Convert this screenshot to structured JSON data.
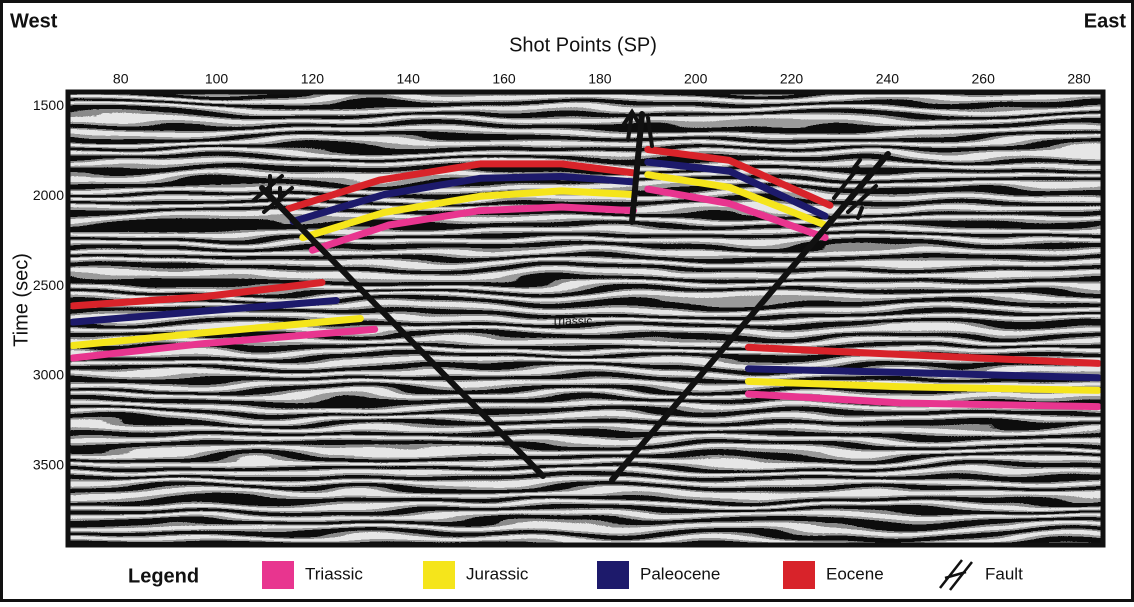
{
  "chart_data": {
    "type": "line",
    "left_label": "West",
    "right_label": "East",
    "xlabel": "Shot Points (SP)",
    "ylabel": "Time (sec)",
    "annotation": "Triassic",
    "legend_title": "Legend",
    "fault_label": "Fault",
    "xlim": [
      69,
      285
    ],
    "xticks": [
      80,
      100,
      120,
      140,
      160,
      180,
      200,
      220,
      240,
      260,
      280
    ],
    "ylim": [
      1420,
      3940
    ],
    "y_inverted": true,
    "yticks": [
      1500,
      2000,
      2500,
      3000,
      3500
    ],
    "series": [
      {
        "name": "Triassic",
        "color": "#e8358f",
        "x": [
          70,
          97,
          133,
          null,
          120,
          136,
          155,
          172,
          187,
          null,
          190,
          207,
          227,
          null,
          211,
          243,
          284
        ],
        "values": [
          2900,
          2820,
          2740,
          null,
          2300,
          2160,
          2080,
          2060,
          2080,
          null,
          1960,
          2040,
          2230,
          null,
          3100,
          3150,
          3170
        ]
      },
      {
        "name": "Jurassic",
        "color": "#f5e51b",
        "x": [
          70,
          97,
          130,
          null,
          118,
          135,
          155,
          172,
          187,
          null,
          190,
          207,
          227,
          null,
          211,
          243,
          284
        ],
        "values": [
          2830,
          2760,
          2680,
          null,
          2230,
          2090,
          2000,
          1970,
          1990,
          null,
          1880,
          1950,
          2160,
          null,
          3030,
          3060,
          3080
        ]
      },
      {
        "name": "Paleocene",
        "color": "#1d1a6b",
        "x": [
          70,
          97,
          125,
          null,
          116,
          135,
          155,
          172,
          187,
          null,
          190,
          207,
          227,
          null,
          211,
          243,
          284
        ],
        "values": [
          2700,
          2640,
          2580,
          null,
          2140,
          1990,
          1900,
          1890,
          1920,
          null,
          1810,
          1860,
          2110,
          null,
          2960,
          2980,
          3010
        ]
      },
      {
        "name": "Eocene",
        "color": "#d8232a",
        "x": [
          70,
          97,
          122,
          null,
          115,
          134,
          155,
          172,
          187,
          null,
          190,
          207,
          228,
          null,
          211,
          243,
          284
        ],
        "values": [
          2610,
          2560,
          2480,
          null,
          2070,
          1910,
          1820,
          1820,
          1870,
          null,
          1740,
          1800,
          2050,
          null,
          2840,
          2880,
          2930
        ]
      }
    ]
  }
}
